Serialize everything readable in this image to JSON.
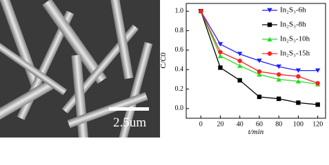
{
  "micrograph": {
    "scale_bar": "2.5um"
  },
  "chart_data": {
    "type": "line",
    "x_label": "t/min",
    "y_label": "C/C0",
    "x": [
      0,
      20,
      40,
      60,
      80,
      100,
      120
    ],
    "xlim": [
      -15,
      128
    ],
    "xticks": [
      0,
      20,
      40,
      60,
      80,
      100,
      120
    ],
    "ylim": [
      -0.1,
      1.08
    ],
    "yticks": [
      {
        "value": 0,
        "label": "0.0"
      },
      0.2,
      0.4,
      0.6,
      0.8,
      {
        "value": 1,
        "label": "1.0"
      }
    ],
    "legend": "upper right",
    "series": [
      {
        "name": "In₂S₃-6h",
        "color": "#1f1fff",
        "marker": "triangle-down",
        "values": [
          1,
          0.66,
          0.56,
          0.49,
          0.43,
          0.39,
          0.39
        ]
      },
      {
        "name": "In₂S₃-8h",
        "color": "#000000",
        "marker": "square",
        "values": [
          1,
          0.42,
          0.29,
          0.12,
          0.1,
          0.06,
          0.04
        ]
      },
      {
        "name": "In₂S₃-10h",
        "color": "#22dd22",
        "marker": "triangle-up",
        "values": [
          1,
          0.54,
          0.44,
          0.35,
          0.3,
          0.28,
          0.25
        ]
      },
      {
        "name": "In₂S₃-15h",
        "color": "#ff2020",
        "marker": "circle",
        "values": [
          1,
          0.58,
          0.49,
          0.38,
          0.35,
          0.33,
          0.26
        ]
      }
    ]
  }
}
